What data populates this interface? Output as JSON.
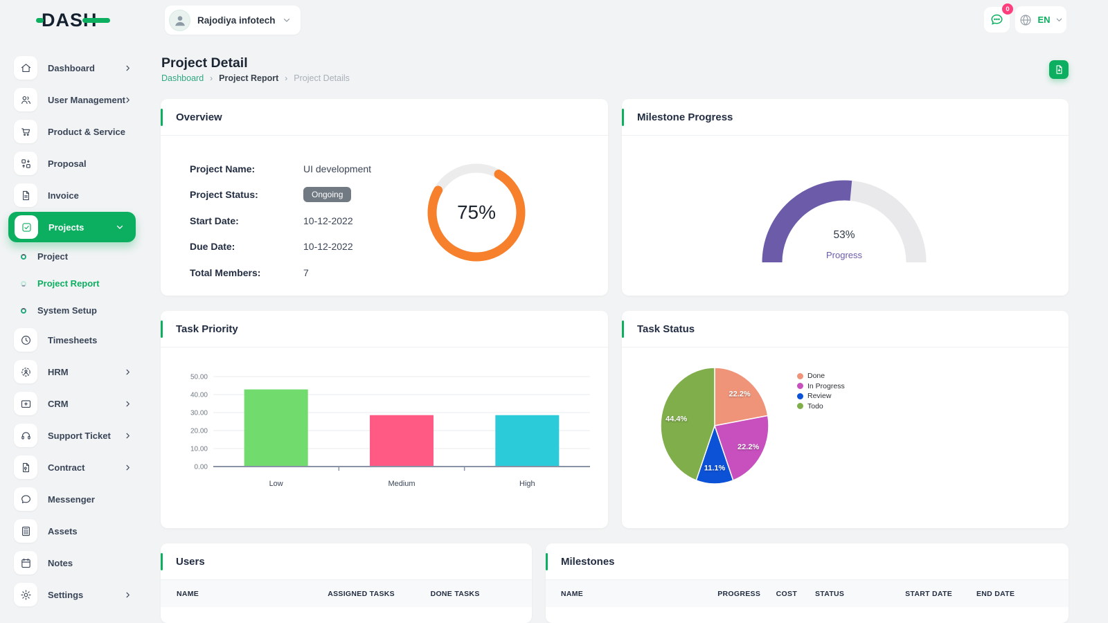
{
  "app": {
    "logo_text": "DASH",
    "company_selector": {
      "name": "Rajodiya infotech"
    },
    "header": {
      "chat_badge": "0",
      "language": "EN"
    }
  },
  "sidebar": {
    "items": [
      {
        "label": "Dashboard",
        "icon": "home-icon",
        "expandable": true
      },
      {
        "label": "User Management",
        "icon": "users-icon",
        "expandable": true
      },
      {
        "label": "Product & Service",
        "icon": "cart-icon",
        "expandable": false
      },
      {
        "label": "Proposal",
        "icon": "swap-boxes-icon",
        "expandable": false
      },
      {
        "label": "Invoice",
        "icon": "file-icon",
        "expandable": false
      },
      {
        "label": "Projects",
        "icon": "check-square-icon",
        "expandable": true,
        "active": true,
        "expanded": true
      },
      {
        "label": "Project",
        "type": "sub"
      },
      {
        "label": "Project Report",
        "type": "sub",
        "active": true
      },
      {
        "label": "System Setup",
        "type": "sub"
      },
      {
        "label": "Timesheets",
        "icon": "clock-icon",
        "expandable": false
      },
      {
        "label": "HRM",
        "icon": "scan-person-icon",
        "expandable": true
      },
      {
        "label": "CRM",
        "icon": "id-card-icon",
        "expandable": true
      },
      {
        "label": "Support Ticket",
        "icon": "headset-icon",
        "expandable": true
      },
      {
        "label": "Contract",
        "icon": "contract-file-icon",
        "expandable": true
      },
      {
        "label": "Messenger",
        "icon": "chat-bubble-icon",
        "expandable": false
      },
      {
        "label": "Assets",
        "icon": "calculator-icon",
        "expandable": false
      },
      {
        "label": "Notes",
        "icon": "calendar-icon",
        "expandable": false
      },
      {
        "label": "Settings",
        "icon": "gear-icon",
        "expandable": true
      }
    ]
  },
  "page": {
    "title": "Project Detail",
    "breadcrumb": [
      "Dashboard",
      "Project Report",
      "Project Details"
    ]
  },
  "cards": {
    "overview": {
      "title": "Overview",
      "fields": [
        {
          "label": "Project Name:",
          "value": "UI development",
          "type": "text"
        },
        {
          "label": "Project Status:",
          "value": "Ongoing",
          "type": "badge"
        },
        {
          "label": "Start Date:",
          "value": "10-12-2022",
          "type": "text"
        },
        {
          "label": "Due Date:",
          "value": "10-12-2022",
          "type": "text"
        },
        {
          "label": "Total Members:",
          "value": "7",
          "type": "text"
        }
      ],
      "donut": {
        "percent": 75,
        "label": "75%",
        "color": "#F6802B",
        "track": "#ECECEC"
      }
    },
    "milestone_progress": {
      "title": "Milestone Progress",
      "percent": 53,
      "value_label": "53%",
      "caption": "Progress",
      "color": "#6B5BA9",
      "track": "#E9E9EB"
    },
    "task_priority": {
      "title": "Task Priority",
      "chart_data": {
        "type": "bar",
        "categories": [
          "Low",
          "Medium",
          "High"
        ],
        "values": [
          42.86,
          28.57,
          28.57
        ],
        "colors": [
          "#71DB6D",
          "#FF5A84",
          "#2BCBD9"
        ],
        "ylim": [
          0,
          50
        ],
        "yticks": [
          "0.00",
          "10.00",
          "20.00",
          "30.00",
          "40.00",
          "50.00"
        ],
        "grid": true
      }
    },
    "task_status": {
      "title": "Task Status",
      "chart_data": {
        "type": "pie",
        "labels": [
          "Done",
          "In Progress",
          "Review",
          "Todo"
        ],
        "values": [
          22.2,
          22.2,
          11.1,
          44.4
        ],
        "slice_labels": [
          "22.2%",
          "22.2%",
          "11.1%",
          "44.4%"
        ],
        "colors": [
          "#EF9479",
          "#C750BE",
          "#0C52D7",
          "#7FAE4A"
        ],
        "legend_position": "right"
      }
    },
    "users": {
      "title": "Users",
      "columns": [
        "NAME",
        "ASSIGNED TASKS",
        "DONE TASKS"
      ]
    },
    "milestones": {
      "title": "Milestones",
      "columns": [
        "NAME",
        "PROGRESS",
        "COST",
        "STATUS",
        "START DATE",
        "END DATE"
      ]
    }
  },
  "colors": {
    "primary": "#0CAF60",
    "badge": "#FF3E7D"
  }
}
